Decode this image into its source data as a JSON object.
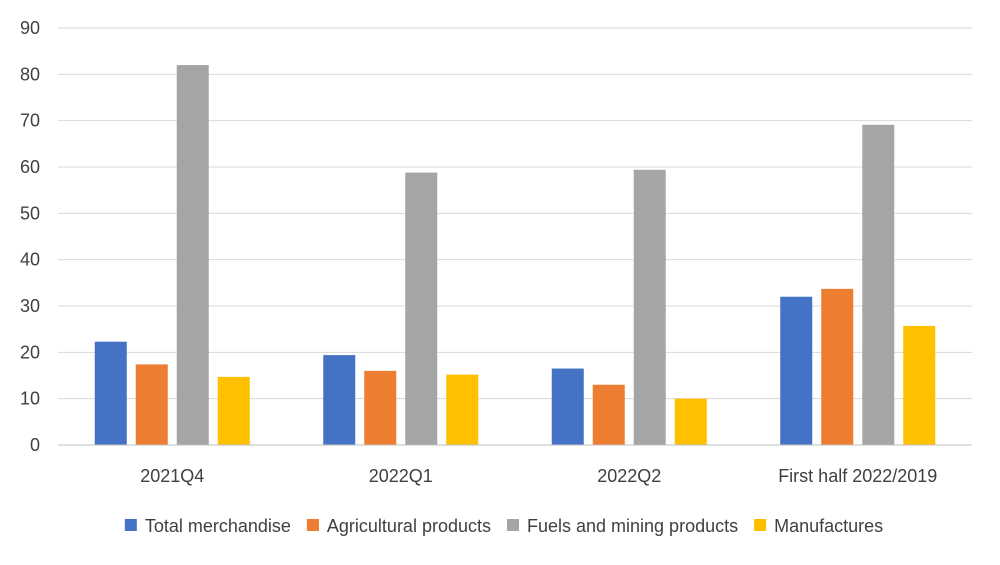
{
  "chart_data": {
    "type": "bar",
    "categories": [
      "2021Q4",
      "2022Q1",
      "2022Q2",
      "First half 2022/2019"
    ],
    "series": [
      {
        "name": "Total merchandise",
        "values": [
          22.3,
          19.4,
          16.5,
          32.0
        ],
        "color": "#4472C4"
      },
      {
        "name": "Agricultural products",
        "values": [
          17.4,
          16.0,
          13.0,
          33.7
        ],
        "color": "#ED7D31"
      },
      {
        "name": "Fuels and mining products",
        "values": [
          82.0,
          58.8,
          59.4,
          69.1
        ],
        "color": "#A5A5A5"
      },
      {
        "name": "Manufactures",
        "values": [
          14.7,
          15.2,
          10.0,
          25.7
        ],
        "color": "#FFC000"
      }
    ],
    "ylim": [
      0,
      90
    ],
    "yticks": [
      0,
      10,
      20,
      30,
      40,
      50,
      60,
      70,
      80,
      90
    ],
    "grid": true,
    "legend_position": "bottom"
  }
}
